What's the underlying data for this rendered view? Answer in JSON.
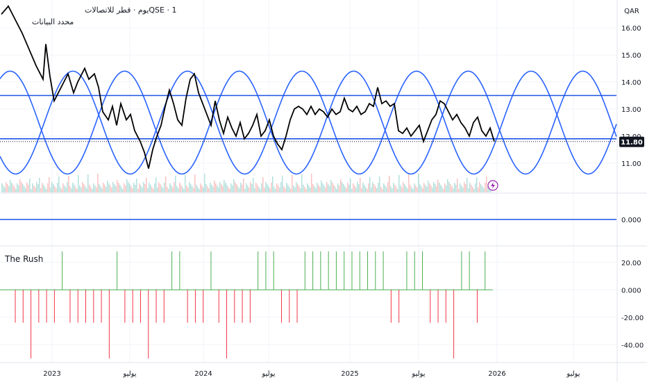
{
  "header": {
    "symbol_line": "QSE · 1يوم · قطر للاتصالات",
    "subline": "محدد البيانات"
  },
  "currency": "QAR",
  "current_price": "11.80",
  "colors": {
    "price_line": "#000000",
    "cycle": "#2962ff",
    "hline": "#1e53e5",
    "vol_up": "#26a69a",
    "vol_down": "#ef5350",
    "rush_pos": "#4caf50",
    "rush_neg": "#f23645",
    "lightning": "#9c27b0"
  },
  "chart_data": [
    {
      "type": "line",
      "title": "",
      "price_axis_ticks": [
        "16.00",
        "15.00",
        "14.00",
        "13.00",
        "12.00",
        "11.00"
      ],
      "ylim": [
        10.1,
        16.9
      ],
      "x_axis_ticks": [
        "2023",
        "يوليو",
        "2024",
        "يوليو",
        "2025",
        "يوليو",
        "2026",
        "يوليو"
      ],
      "price_series": [
        {
          "t": 0.0,
          "v": 16.5
        },
        {
          "t": 0.05,
          "v": 16.8
        },
        {
          "t": 0.1,
          "v": 16.3
        },
        {
          "t": 0.15,
          "v": 15.8
        },
        {
          "t": 0.2,
          "v": 15.2
        },
        {
          "t": 0.25,
          "v": 14.6
        },
        {
          "t": 0.3,
          "v": 14.1
        },
        {
          "t": 0.32,
          "v": 15.4
        },
        {
          "t": 0.35,
          "v": 14.2
        },
        {
          "t": 0.38,
          "v": 13.3
        },
        {
          "t": 0.42,
          "v": 13.7
        },
        {
          "t": 0.45,
          "v": 14.0
        },
        {
          "t": 0.48,
          "v": 14.3
        },
        {
          "t": 0.52,
          "v": 13.6
        },
        {
          "t": 0.55,
          "v": 14.0
        },
        {
          "t": 0.6,
          "v": 14.5
        },
        {
          "t": 0.63,
          "v": 14.1
        },
        {
          "t": 0.67,
          "v": 14.3
        },
        {
          "t": 0.7,
          "v": 13.8
        },
        {
          "t": 0.73,
          "v": 12.9
        },
        {
          "t": 0.77,
          "v": 12.6
        },
        {
          "t": 0.8,
          "v": 13.1
        },
        {
          "t": 0.83,
          "v": 12.4
        },
        {
          "t": 0.86,
          "v": 13.2
        },
        {
          "t": 0.9,
          "v": 12.6
        },
        {
          "t": 0.93,
          "v": 12.8
        },
        {
          "t": 0.96,
          "v": 12.2
        },
        {
          "t": 1.0,
          "v": 11.8
        },
        {
          "t": 1.03,
          "v": 11.4
        },
        {
          "t": 1.06,
          "v": 10.8
        },
        {
          "t": 1.09,
          "v": 11.5
        },
        {
          "t": 1.12,
          "v": 12.0
        },
        {
          "t": 1.15,
          "v": 12.4
        },
        {
          "t": 1.18,
          "v": 13.1
        },
        {
          "t": 1.21,
          "v": 13.7
        },
        {
          "t": 1.24,
          "v": 13.2
        },
        {
          "t": 1.27,
          "v": 12.6
        },
        {
          "t": 1.3,
          "v": 12.4
        },
        {
          "t": 1.33,
          "v": 13.4
        },
        {
          "t": 1.36,
          "v": 14.1
        },
        {
          "t": 1.39,
          "v": 14.3
        },
        {
          "t": 1.42,
          "v": 13.6
        },
        {
          "t": 1.45,
          "v": 13.2
        },
        {
          "t": 1.48,
          "v": 12.8
        },
        {
          "t": 1.51,
          "v": 12.4
        },
        {
          "t": 1.54,
          "v": 13.3
        },
        {
          "t": 1.57,
          "v": 12.6
        },
        {
          "t": 1.6,
          "v": 12.1
        },
        {
          "t": 1.63,
          "v": 12.7
        },
        {
          "t": 1.66,
          "v": 12.3
        },
        {
          "t": 1.69,
          "v": 12.0
        },
        {
          "t": 1.72,
          "v": 12.5
        },
        {
          "t": 1.75,
          "v": 11.9
        },
        {
          "t": 1.78,
          "v": 12.1
        },
        {
          "t": 1.81,
          "v": 12.4
        },
        {
          "t": 1.84,
          "v": 12.8
        },
        {
          "t": 1.87,
          "v": 12.0
        },
        {
          "t": 1.9,
          "v": 12.2
        },
        {
          "t": 1.93,
          "v": 12.6
        },
        {
          "t": 1.96,
          "v": 12.0
        },
        {
          "t": 1.99,
          "v": 11.7
        },
        {
          "t": 2.02,
          "v": 11.5
        },
        {
          "t": 2.05,
          "v": 12.0
        },
        {
          "t": 2.08,
          "v": 12.6
        },
        {
          "t": 2.11,
          "v": 13.0
        },
        {
          "t": 2.14,
          "v": 13.1
        },
        {
          "t": 2.17,
          "v": 13.0
        },
        {
          "t": 2.2,
          "v": 12.8
        },
        {
          "t": 2.23,
          "v": 13.1
        },
        {
          "t": 2.26,
          "v": 12.8
        },
        {
          "t": 2.29,
          "v": 13.0
        },
        {
          "t": 2.32,
          "v": 12.9
        },
        {
          "t": 2.35,
          "v": 12.7
        },
        {
          "t": 2.38,
          "v": 13.0
        },
        {
          "t": 2.41,
          "v": 12.8
        },
        {
          "t": 2.44,
          "v": 12.9
        },
        {
          "t": 2.47,
          "v": 13.4
        },
        {
          "t": 2.5,
          "v": 13.0
        },
        {
          "t": 2.53,
          "v": 12.9
        },
        {
          "t": 2.56,
          "v": 13.1
        },
        {
          "t": 2.59,
          "v": 12.8
        },
        {
          "t": 2.62,
          "v": 12.9
        },
        {
          "t": 2.65,
          "v": 13.2
        },
        {
          "t": 2.68,
          "v": 13.1
        },
        {
          "t": 2.71,
          "v": 13.8
        },
        {
          "t": 2.74,
          "v": 13.2
        },
        {
          "t": 2.77,
          "v": 13.3
        },
        {
          "t": 2.8,
          "v": 13.1
        },
        {
          "t": 2.83,
          "v": 13.2
        },
        {
          "t": 2.86,
          "v": 12.2
        },
        {
          "t": 2.89,
          "v": 12.1
        },
        {
          "t": 2.92,
          "v": 12.3
        },
        {
          "t": 2.95,
          "v": 12.0
        },
        {
          "t": 2.98,
          "v": 12.2
        },
        {
          "t": 3.01,
          "v": 12.4
        },
        {
          "t": 3.04,
          "v": 11.8
        },
        {
          "t": 3.07,
          "v": 12.2
        },
        {
          "t": 3.1,
          "v": 12.6
        },
        {
          "t": 3.13,
          "v": 12.8
        },
        {
          "t": 3.16,
          "v": 13.3
        },
        {
          "t": 3.19,
          "v": 13.2
        },
        {
          "t": 3.22,
          "v": 12.9
        },
        {
          "t": 3.25,
          "v": 12.6
        },
        {
          "t": 3.28,
          "v": 12.8
        },
        {
          "t": 3.31,
          "v": 12.5
        },
        {
          "t": 3.34,
          "v": 12.3
        },
        {
          "t": 3.37,
          "v": 12.0
        },
        {
          "t": 3.4,
          "v": 12.5
        },
        {
          "t": 3.43,
          "v": 12.7
        },
        {
          "t": 3.46,
          "v": 12.2
        },
        {
          "t": 3.49,
          "v": 12.0
        },
        {
          "t": 3.52,
          "v": 12.3
        },
        {
          "t": 3.55,
          "v": 11.8
        }
      ],
      "horizontal_levels": [
        13.5,
        11.9
      ],
      "cycle_amplitude": 1.0,
      "cycle_centre": 12.5
    },
    {
      "type": "bar",
      "title": "The Rush",
      "price_axis_ticks": [
        "20.00",
        "0.000",
        "-20.00",
        "-40.00"
      ],
      "ylim": [
        -52,
        30
      ],
      "values": [
        -24,
        -24,
        -50,
        -24,
        -24,
        -24,
        28,
        -24,
        -24,
        -24,
        -24,
        -24,
        -50,
        28,
        -24,
        -24,
        -24,
        -50,
        -24,
        -24,
        28,
        28,
        -24,
        -24,
        -24,
        28,
        -24,
        -50,
        -24,
        -24,
        -24,
        28,
        28,
        28,
        -24,
        -24,
        -24,
        28,
        28,
        28,
        28,
        28,
        28,
        28,
        28,
        28,
        28,
        28,
        -24,
        -24,
        28,
        28,
        28,
        -24,
        -24,
        -24,
        -50,
        28,
        28,
        -24,
        28
      ]
    },
    {
      "type": "line",
      "title": "",
      "price_axis_ticks": [
        "0.000"
      ],
      "ylim": [
        -1,
        1
      ],
      "values": [
        0
      ]
    }
  ]
}
